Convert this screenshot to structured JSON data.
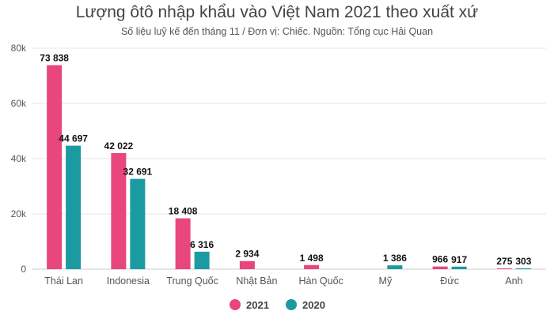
{
  "chart_data": {
    "type": "bar",
    "title": "Lượng ôtô nhập khẩu vào Việt Nam 2021 theo xuất xứ",
    "subtitle": "Số liệu luỹ kế đến tháng 11 / Đơn vị: Chiếc. Nguồn: Tổng cục Hải Quan",
    "categories": [
      "Thái Lan",
      "Indonesia",
      "Trung Quốc",
      "Nhật Bản",
      "Hàn Quốc",
      "Mỹ",
      "Đức",
      "Anh"
    ],
    "series": [
      {
        "name": "2021",
        "color": "#e8467c",
        "values": [
          73838,
          42022,
          18408,
          2934,
          1498,
          null,
          966,
          275
        ],
        "labels": [
          "73 838",
          "42 022",
          "18 408",
          "2 934",
          "1 498",
          "",
          "966",
          "275"
        ]
      },
      {
        "name": "2020",
        "color": "#1a9ba1",
        "values": [
          44697,
          32691,
          6316,
          null,
          null,
          1386,
          917,
          303
        ],
        "labels": [
          "44 697",
          "32 691",
          "6 316",
          "",
          "",
          "1 386",
          "917",
          "303"
        ]
      }
    ],
    "ylim": [
      0,
      80000
    ],
    "yticks": [
      0,
      20000,
      40000,
      60000,
      80000
    ],
    "ytick_labels": [
      "0",
      "20k",
      "40k",
      "60k",
      "80k"
    ],
    "grid": true,
    "legend_position": "bottom"
  }
}
